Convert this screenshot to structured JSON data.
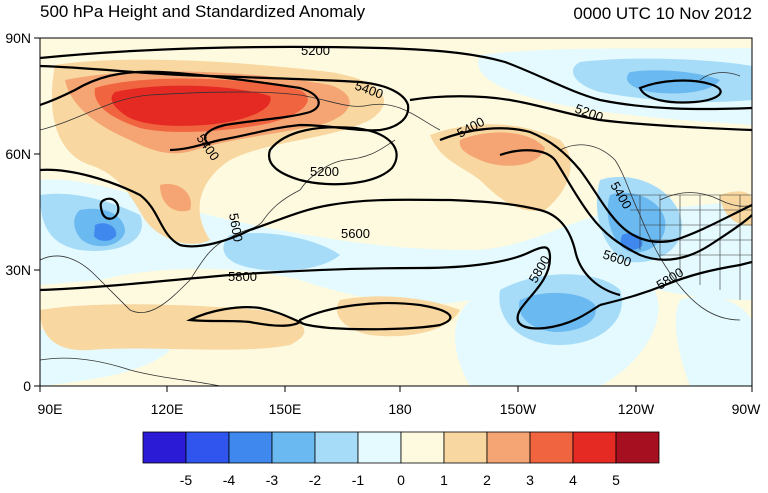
{
  "title_left": "500 hPa Height and Standardized Anomaly",
  "title_right": "0000 UTC 10 Nov 2012",
  "lat_labels": [
    "90N",
    "60N",
    "30N",
    "0"
  ],
  "lon_labels": [
    "90E",
    "120E",
    "150E",
    "180",
    "150W",
    "120W",
    "90W"
  ],
  "contour_labels": [
    "5200",
    "5400",
    "5200",
    "5400",
    "5200",
    "5400",
    "5600",
    "5800",
    "5600",
    "5400",
    "5600",
    "5800",
    "5800"
  ],
  "legend": {
    "labels": [
      "-5",
      "-4",
      "-3",
      "-2",
      "-1",
      "0",
      "1",
      "2",
      "3",
      "4",
      "5"
    ],
    "colors": [
      "#2b1ad6",
      "#2f55ee",
      "#3e88ee",
      "#6ab9f0",
      "#a6dcf8",
      "#e4fafe",
      "#fefae0",
      "#f8d7a0",
      "#f5a574",
      "#f06440",
      "#e52a24",
      "#a50f1f"
    ]
  },
  "anomaly_colors": {
    "neg1": "#e4fafe",
    "neg2": "#a6dcf8",
    "neg3": "#6ab9f0",
    "neg4": "#3e88ee",
    "pos1": "#fefae0",
    "pos2": "#f8d7a0",
    "pos3": "#f5a574",
    "pos4": "#f06440",
    "pos5": "#e52a24"
  }
}
